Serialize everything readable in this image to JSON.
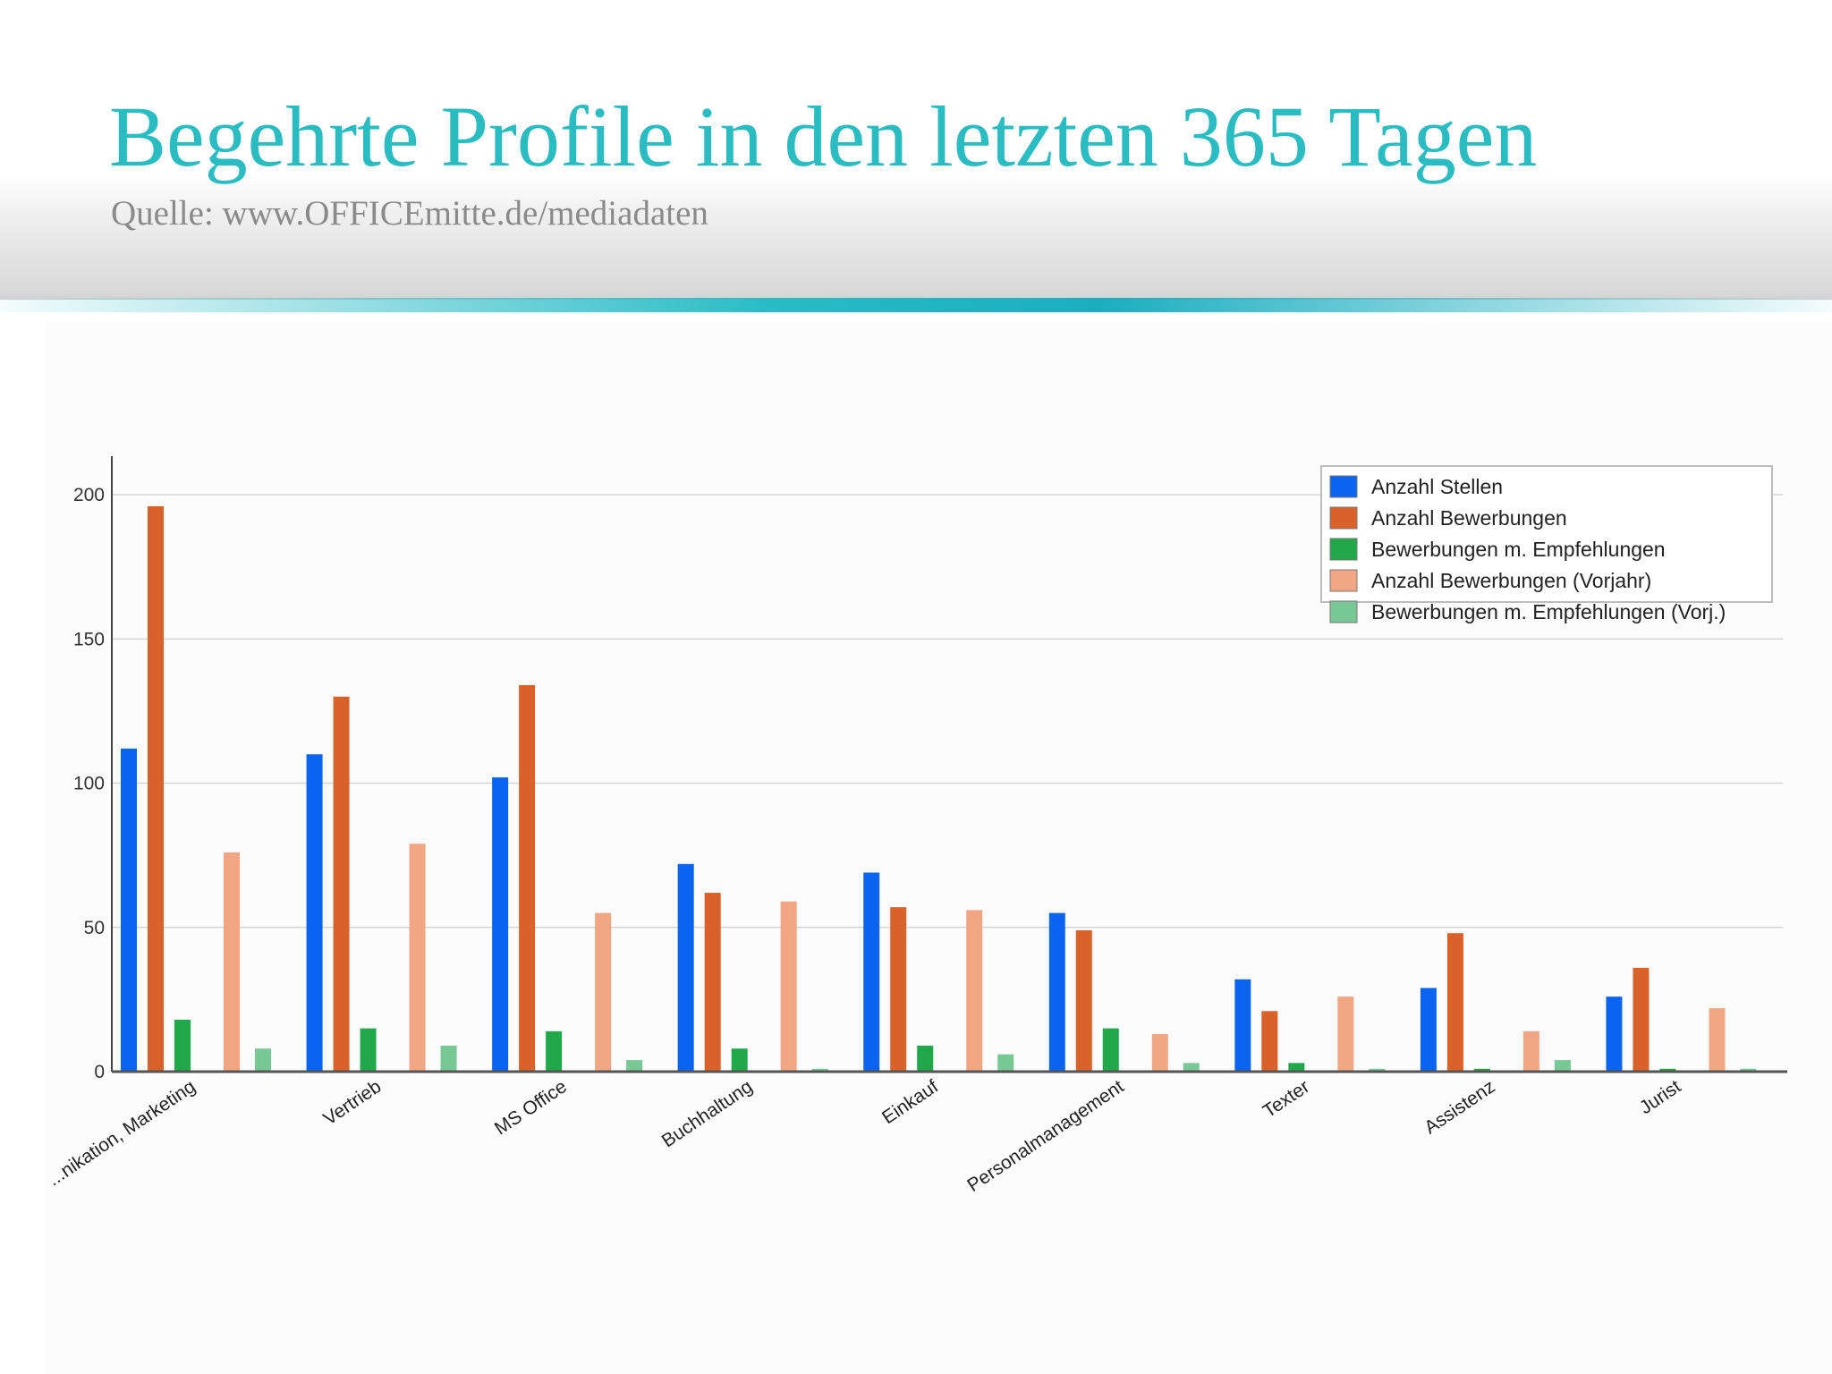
{
  "slide": {
    "title": "Begehrte Profile in den letzten 365 Tagen",
    "subtitle": "Quelle: www.OFFICEmitte.de/mediadaten",
    "title_color": "#2bbcc2",
    "accent_color": "#28bcc6"
  },
  "chart_data": {
    "type": "bar",
    "title": "",
    "xlabel": "",
    "ylabel": "",
    "ylim": [
      0,
      200
    ],
    "yticks": [
      "0",
      "50",
      "100",
      "150",
      "200"
    ],
    "grid": true,
    "legend_position": "top-right",
    "categories": [
      "...nikation, Marketing",
      "Vertrieb",
      "MS Office",
      "Buchhaltung",
      "Einkauf",
      "Personalmanagement",
      "Texter",
      "Assistenz",
      "Jurist"
    ],
    "series": [
      {
        "name": "Anzahl Stellen",
        "color": "#0a64f0",
        "values": [
          112,
          110,
          102,
          72,
          69,
          55,
          32,
          29,
          26
        ]
      },
      {
        "name": "Anzahl Bewerbungen",
        "color": "#d9622b",
        "values": [
          196,
          130,
          134,
          62,
          57,
          49,
          21,
          48,
          36
        ]
      },
      {
        "name": "Bewerbungen m. Empfehlungen",
        "color": "#20a84a",
        "values": [
          18,
          15,
          14,
          8,
          9,
          15,
          3,
          1,
          1
        ]
      },
      {
        "name": "Anzahl Bewerbungen (Vorjahr)",
        "color": "#f2a684",
        "values": [
          76,
          79,
          55,
          59,
          56,
          13,
          26,
          14,
          22
        ]
      },
      {
        "name": "Bewerbungen m. Empfehlungen (Vorj.)",
        "color": "#78c895",
        "values": [
          8,
          9,
          4,
          1,
          6,
          3,
          1,
          4,
          1
        ]
      }
    ]
  }
}
